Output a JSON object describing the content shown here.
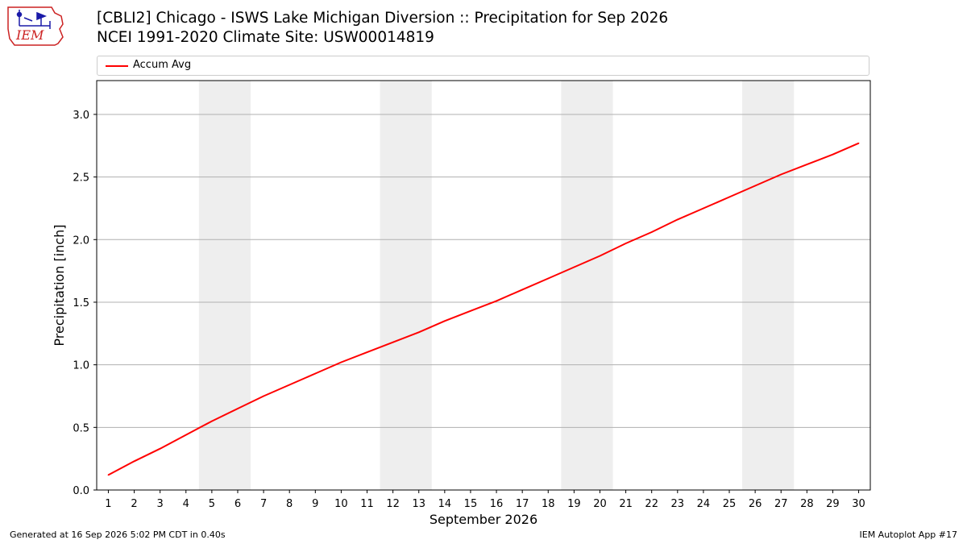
{
  "header": {
    "title_line1": "[CBLI2] Chicago - ISWS Lake Michigan Diversion :: Precipitation for Sep 2026",
    "title_line2": "NCEI 1991-2020 Climate Site: USW00014819",
    "logo_text": "IEM"
  },
  "footer": {
    "generated": "Generated at 16 Sep 2026 5:02 PM CDT in 0.40s",
    "app": "IEM Autoplot App #17"
  },
  "colors": {
    "line": "#ff0000",
    "weekend_band": "#eeeeee",
    "grid": "#b0b0b0",
    "logo": "#cc2222"
  },
  "chart_data": {
    "type": "line",
    "xlabel": "September 2026",
    "ylabel": "Precipitation [inch]",
    "x": [
      1,
      2,
      3,
      4,
      5,
      6,
      7,
      8,
      9,
      10,
      11,
      12,
      13,
      14,
      15,
      16,
      17,
      18,
      19,
      20,
      21,
      22,
      23,
      24,
      25,
      26,
      27,
      28,
      29,
      30
    ],
    "ylim": [
      0,
      3.27
    ],
    "yticks": [
      0.0,
      0.5,
      1.0,
      1.5,
      2.0,
      2.5,
      3.0
    ],
    "grid": "horizontal",
    "legend_position": "top",
    "weekend_bands": [
      [
        5,
        6
      ],
      [
        12,
        13
      ],
      [
        19,
        20
      ],
      [
        26,
        27
      ]
    ],
    "series": [
      {
        "name": "Accum Avg",
        "color": "#ff0000",
        "values": [
          0.12,
          0.23,
          0.33,
          0.44,
          0.55,
          0.65,
          0.75,
          0.84,
          0.93,
          1.02,
          1.1,
          1.18,
          1.26,
          1.35,
          1.43,
          1.51,
          1.6,
          1.69,
          1.78,
          1.87,
          1.97,
          2.06,
          2.16,
          2.25,
          2.34,
          2.43,
          2.52,
          2.6,
          2.68,
          2.77
        ]
      }
    ]
  }
}
